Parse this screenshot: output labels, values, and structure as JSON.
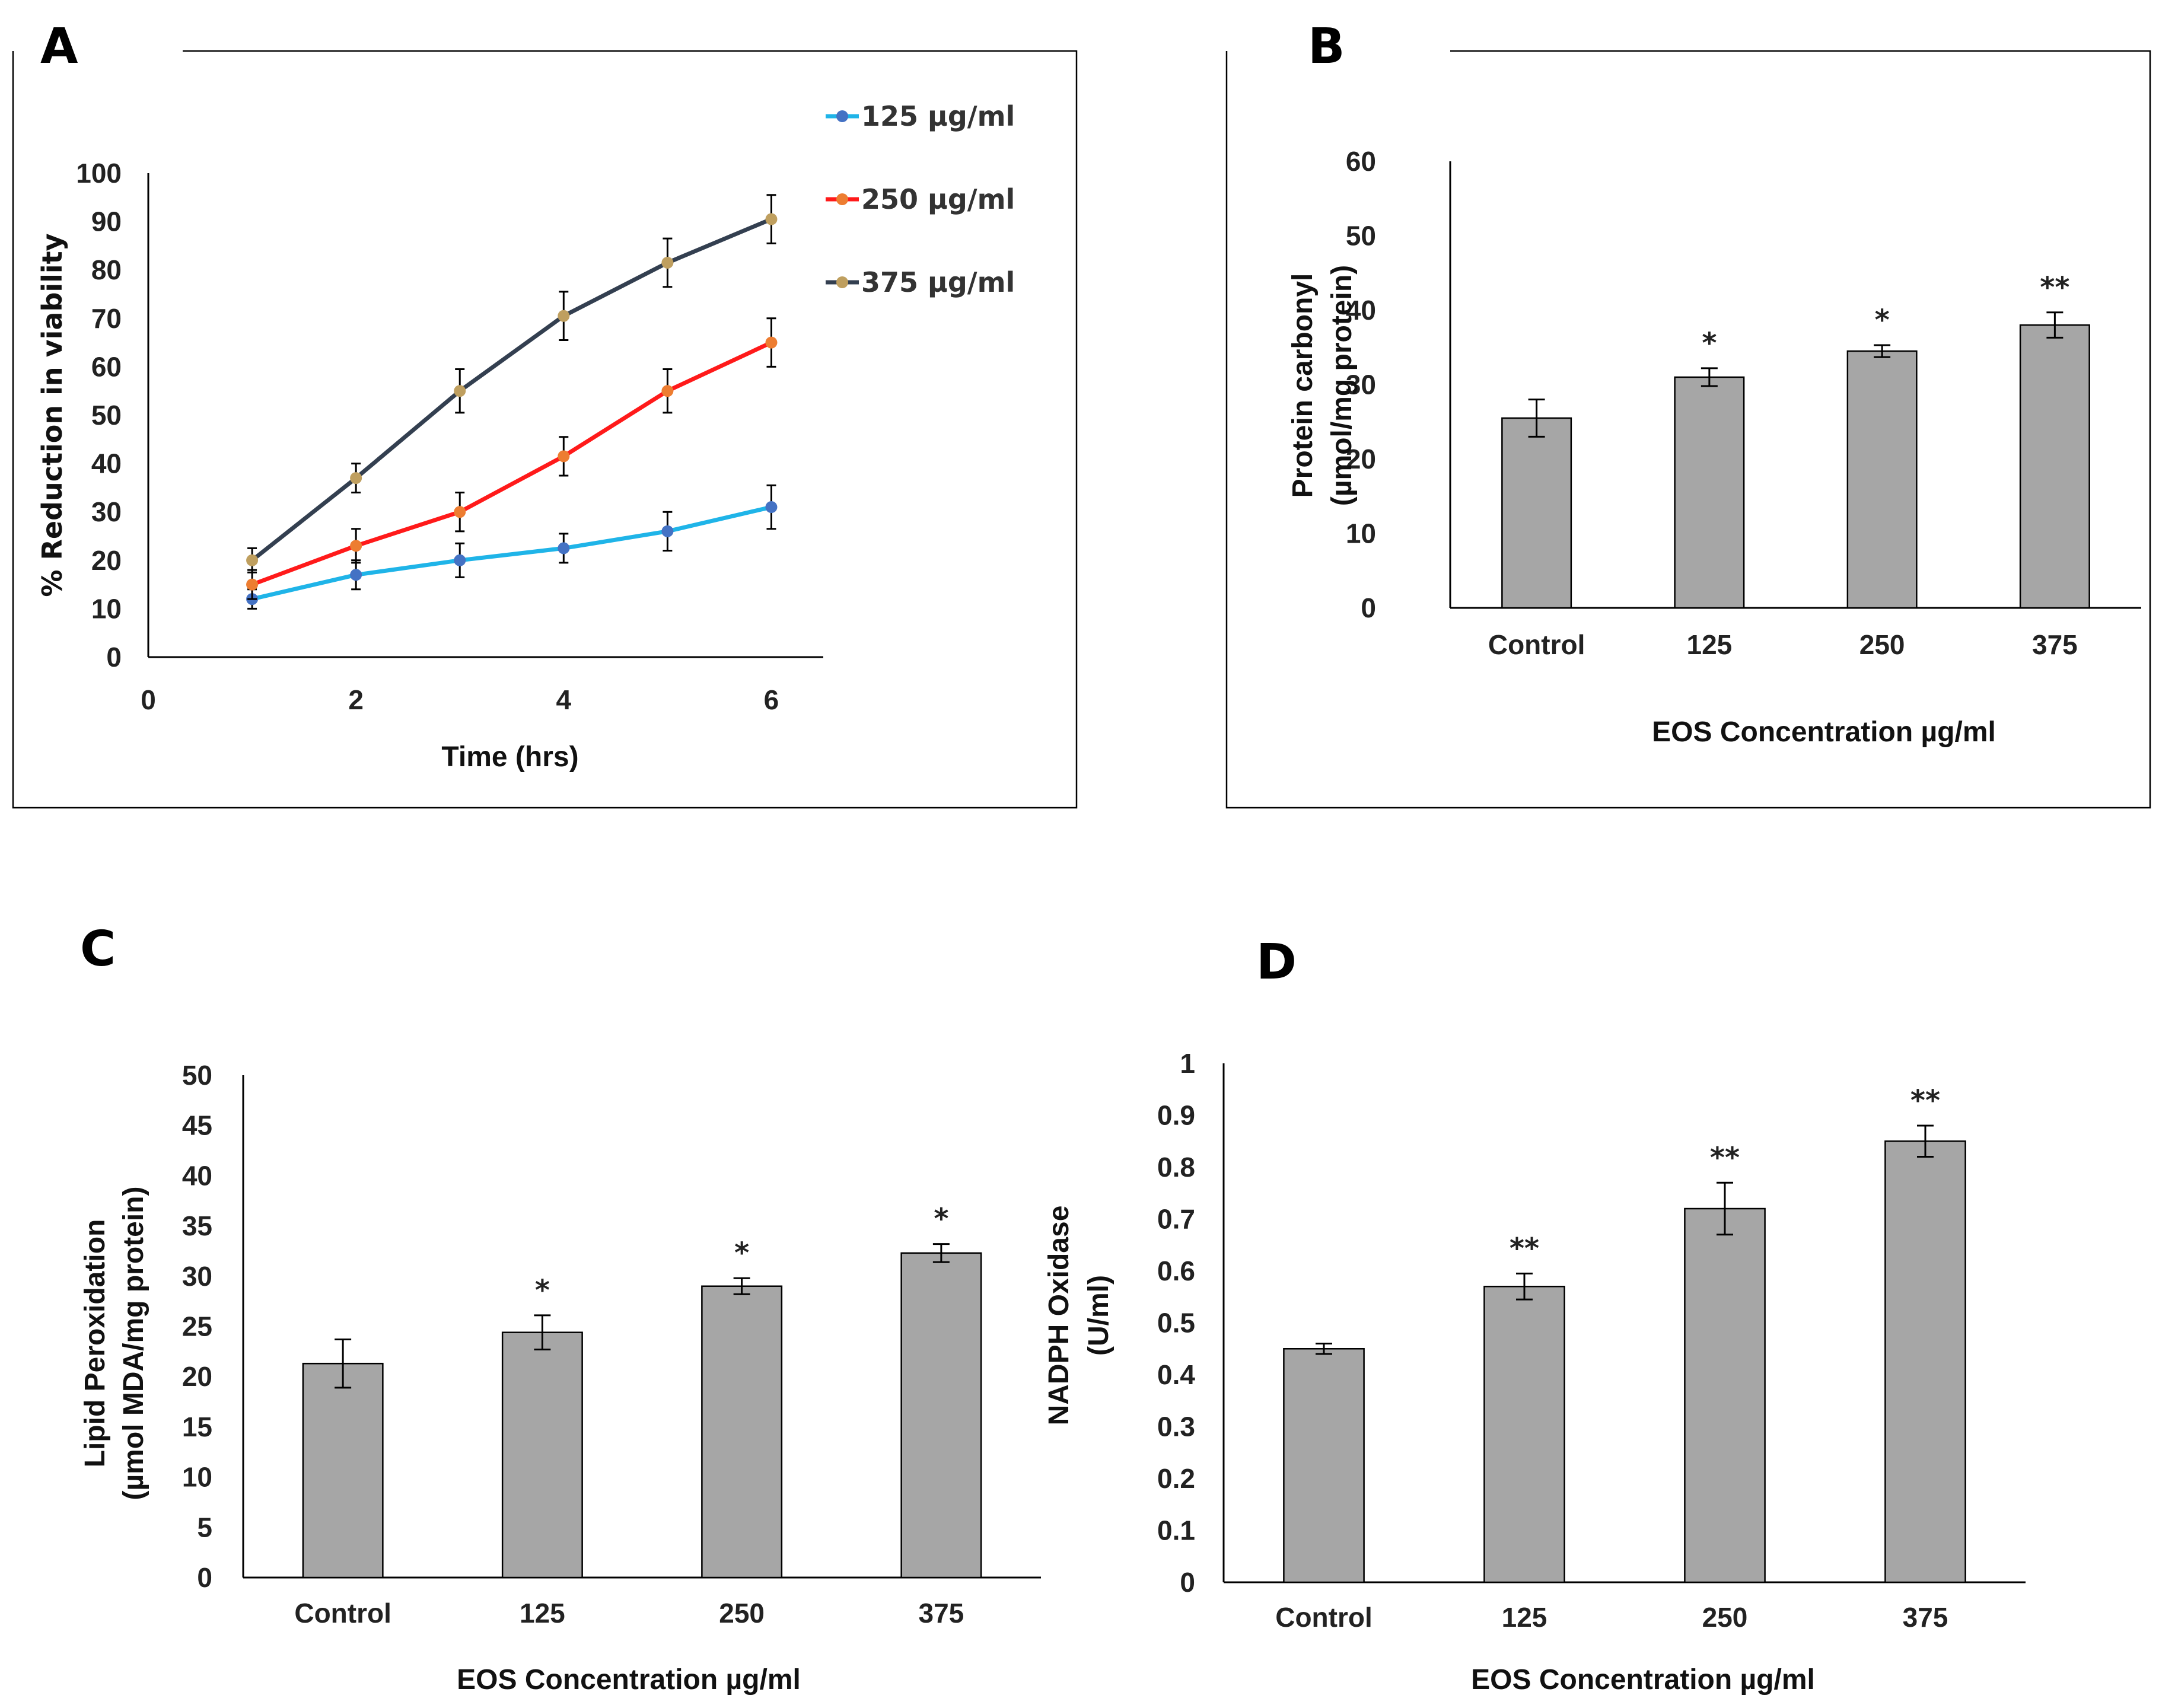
{
  "chart_data": [
    {
      "panel": "A",
      "type": "line",
      "title": "",
      "xlabel": "Time (hrs)",
      "ylabel": "% Reduction in viability",
      "xlim": [
        0,
        6.5
      ],
      "ylim": [
        0,
        100
      ],
      "xticks": [
        0,
        2,
        4,
        6
      ],
      "yticks": [
        0,
        10,
        20,
        30,
        40,
        50,
        60,
        70,
        80,
        90,
        100
      ],
      "x": [
        1,
        2,
        3,
        4,
        5,
        6
      ],
      "grid": false,
      "legend_position": "top-right",
      "series": [
        {
          "name": "125 µg/ml",
          "line_color": "#1fb4e8",
          "marker_color": "#4472c4",
          "values": [
            12,
            17,
            20,
            22.5,
            26,
            31
          ],
          "errors": [
            2,
            3,
            3.5,
            3,
            4,
            4.5
          ]
        },
        {
          "name": "250 µg/ml",
          "line_color": "#ff1a1a",
          "marker_color": "#ed7d31",
          "values": [
            15,
            23,
            30,
            41.5,
            55,
            65
          ],
          "errors": [
            3,
            3.5,
            4,
            4,
            4.5,
            5
          ]
        },
        {
          "name": "375 µg/ml",
          "line_color": "#333f50",
          "marker_color": "#bf9f5f",
          "values": [
            20,
            37,
            55,
            70.5,
            81.5,
            90.5
          ],
          "errors": [
            2.5,
            3,
            4.5,
            5,
            5,
            5
          ]
        }
      ]
    },
    {
      "panel": "B",
      "type": "bar",
      "title": "",
      "xlabel": "EOS Concentration µg/ml",
      "ylabel_line1": "Protein carbonyl",
      "ylabel_line2": "(µmol/mg protein)",
      "ylim": [
        0,
        60
      ],
      "yticks": [
        0,
        10,
        20,
        30,
        40,
        50,
        60
      ],
      "categories": [
        "Control",
        "125",
        "250",
        "375"
      ],
      "values": [
        25.5,
        31,
        34.5,
        38
      ],
      "errors": [
        2.5,
        1.2,
        0.8,
        1.7
      ],
      "significance": [
        "",
        "*",
        "*",
        "**"
      ],
      "bar_color": "#a6a6a6"
    },
    {
      "panel": "C",
      "type": "bar",
      "title": "",
      "xlabel": "EOS Concentration µg/ml",
      "ylabel_line1": "Lipid Peroxidation",
      "ylabel_line2": "(µmol MDA/mg protein)",
      "ylim": [
        0,
        50
      ],
      "yticks": [
        0,
        5,
        10,
        15,
        20,
        25,
        30,
        35,
        40,
        45,
        50
      ],
      "categories": [
        "Control",
        "125",
        "250",
        "375"
      ],
      "values": [
        21.3,
        24.4,
        29,
        32.3
      ],
      "errors": [
        2.4,
        1.7,
        0.8,
        0.9
      ],
      "significance": [
        "",
        "*",
        "*",
        "*"
      ],
      "bar_color": "#a6a6a6"
    },
    {
      "panel": "D",
      "type": "bar",
      "title": "",
      "xlabel": "EOS Concentration µg/ml",
      "ylabel_line1": "NADPH Oxidase",
      "ylabel_line2": "(U/ml)",
      "ylim": [
        0,
        1
      ],
      "yticks": [
        0,
        0.1,
        0.2,
        0.3,
        0.4,
        0.5,
        0.6,
        0.7,
        0.8,
        0.9,
        1
      ],
      "categories": [
        "Control",
        "125",
        "250",
        "375"
      ],
      "values": [
        0.45,
        0.57,
        0.72,
        0.85
      ],
      "errors": [
        0.01,
        0.025,
        0.05,
        0.03
      ],
      "significance": [
        "",
        "**",
        "**",
        "**"
      ],
      "bar_color": "#a6a6a6"
    }
  ]
}
